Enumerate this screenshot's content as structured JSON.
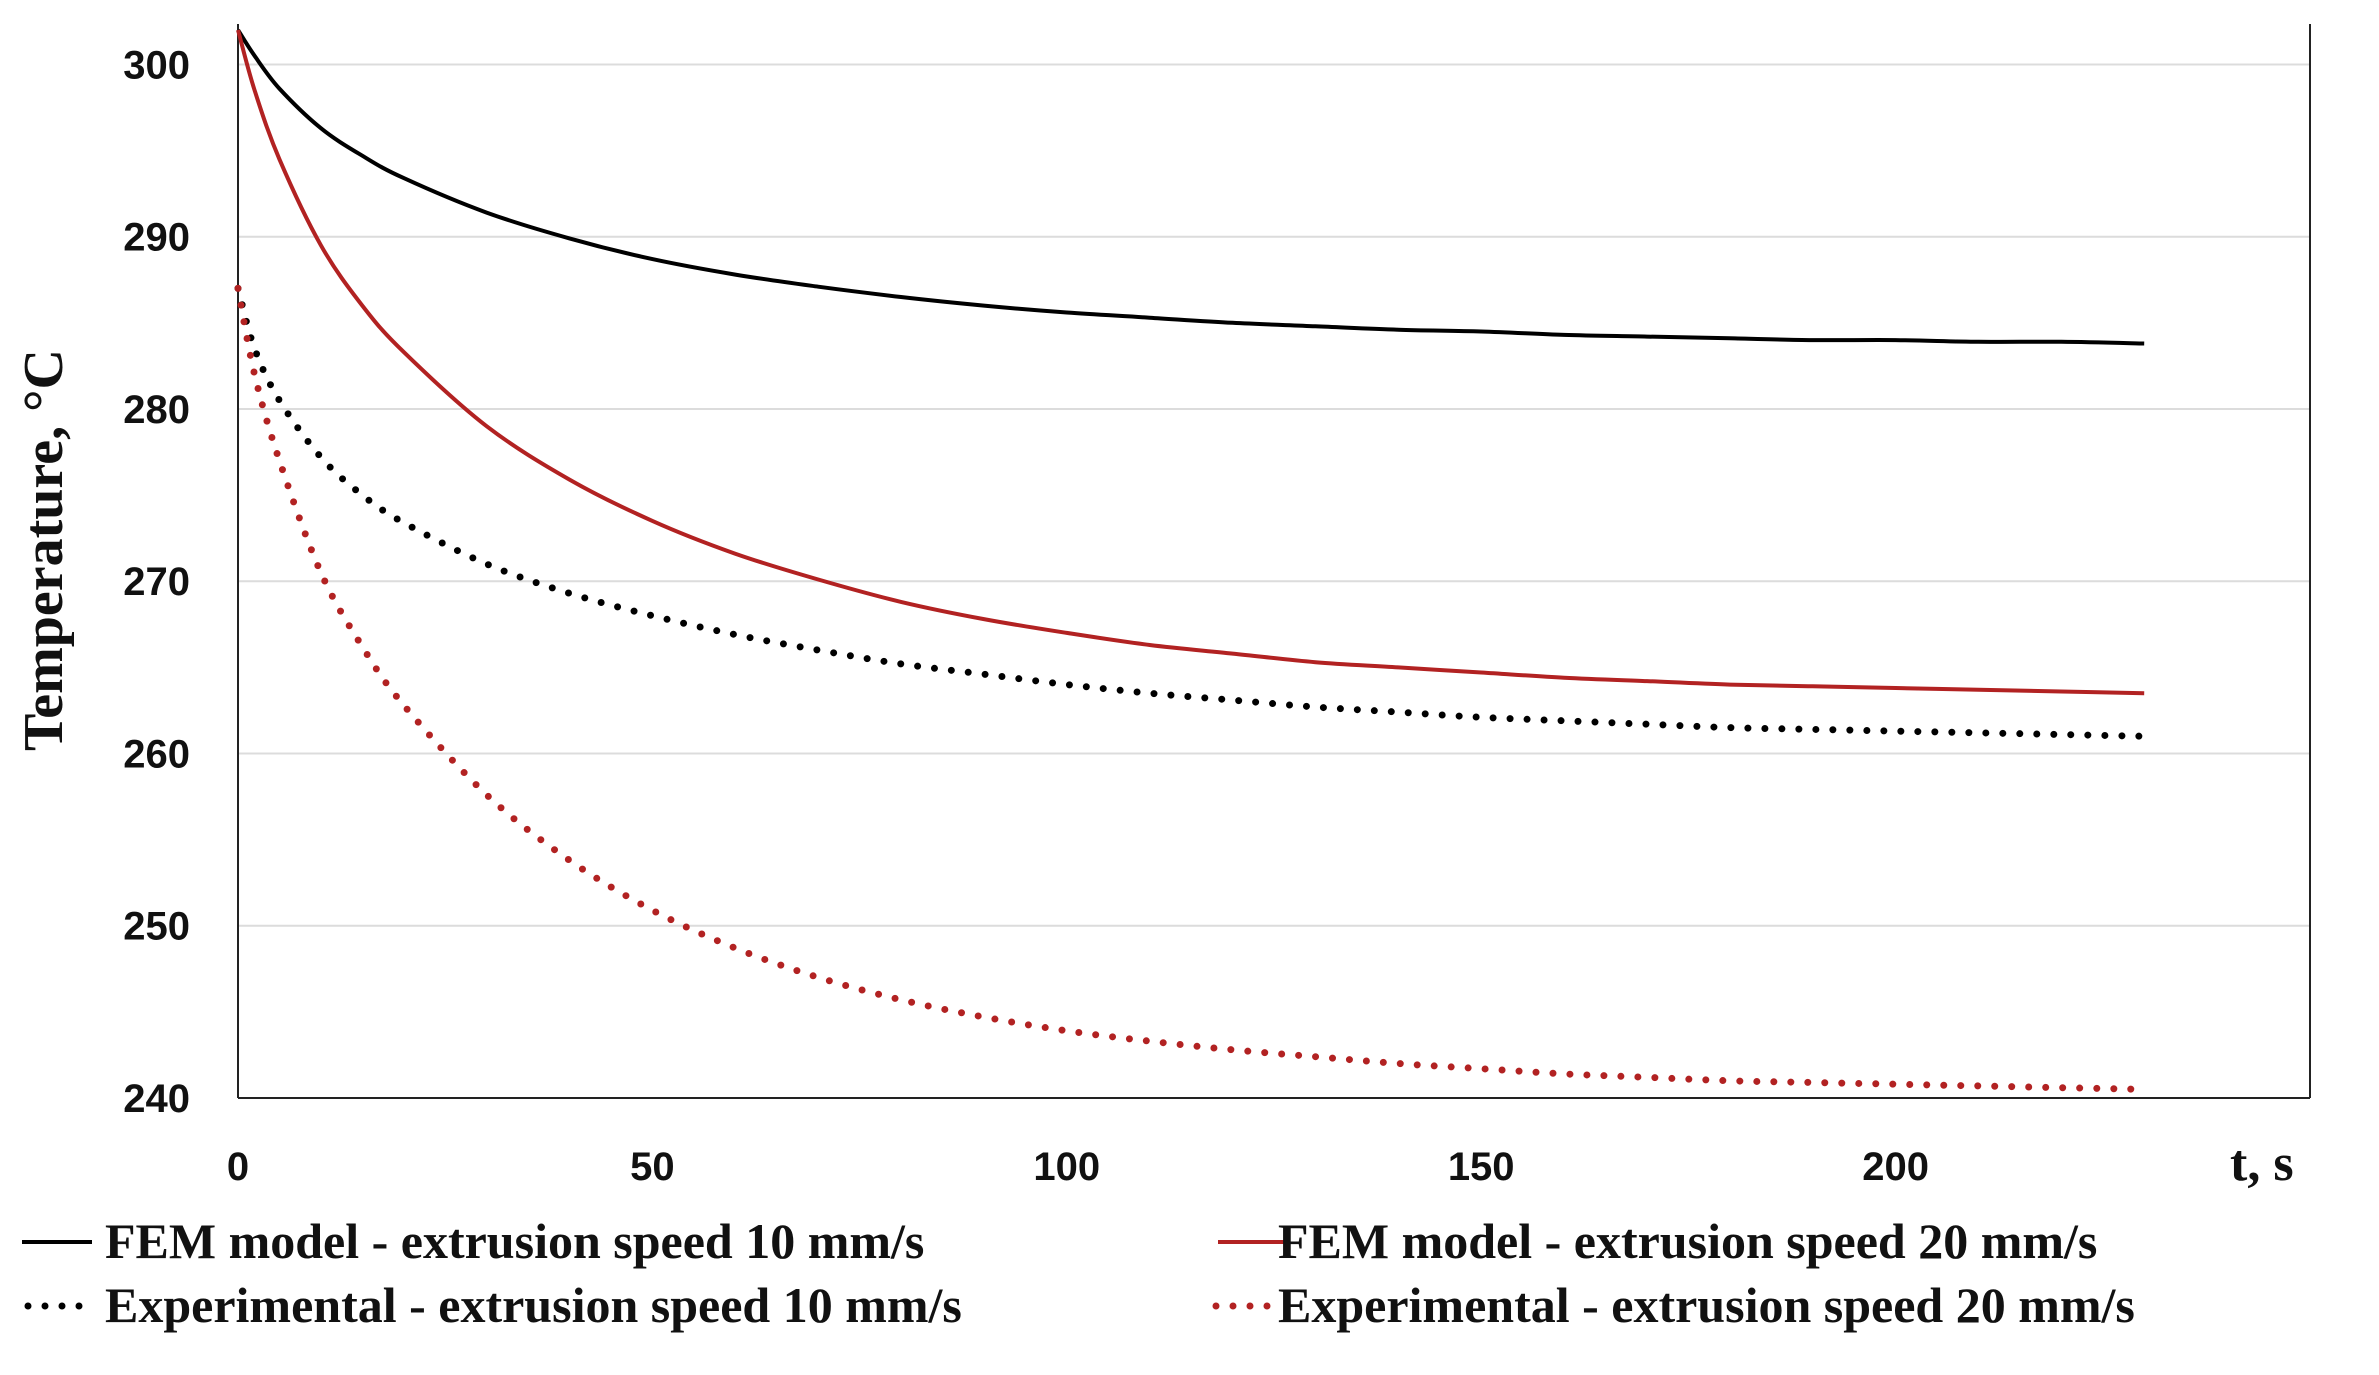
{
  "chart_data": {
    "type": "line",
    "title": "",
    "xlabel": "t, s",
    "ylabel": "Temperature, °C",
    "xlim": [
      0,
      250
    ],
    "ylim": [
      240,
      302
    ],
    "xticks": [
      0,
      50,
      100,
      150,
      200
    ],
    "yticks": [
      240,
      250,
      260,
      270,
      280,
      290,
      300
    ],
    "grid": "horizontal",
    "legend_position": "bottom",
    "series": [
      {
        "name": "FEM model - extrusion speed 10 mm/s",
        "color": "#000000",
        "style": "solid",
        "x": [
          0,
          2,
          5,
          10,
          15,
          20,
          30,
          40,
          50,
          60,
          70,
          80,
          90,
          100,
          110,
          120,
          130,
          140,
          150,
          160,
          170,
          180,
          190,
          200,
          210,
          220,
          230
        ],
        "y": [
          302,
          300.5,
          298.6,
          296.3,
          294.7,
          293.4,
          291.4,
          289.9,
          288.7,
          287.8,
          287.1,
          286.5,
          286.0,
          285.6,
          285.3,
          285.0,
          284.8,
          284.6,
          284.5,
          284.3,
          284.2,
          284.1,
          284.0,
          284.0,
          283.9,
          283.9,
          283.8
        ]
      },
      {
        "name": "FEM model - extrusion speed 20 mm/s",
        "color": "#b22222",
        "style": "solid",
        "x": [
          0,
          2,
          5,
          10,
          15,
          20,
          30,
          40,
          50,
          60,
          70,
          80,
          90,
          100,
          110,
          120,
          130,
          140,
          150,
          160,
          170,
          180,
          190,
          200,
          210,
          220,
          230
        ],
        "y": [
          302,
          298.5,
          294.5,
          289.5,
          286.0,
          283.3,
          279.0,
          275.9,
          273.5,
          271.6,
          270.1,
          268.8,
          267.8,
          267.0,
          266.3,
          265.8,
          265.3,
          265.0,
          264.7,
          264.4,
          264.2,
          264.0,
          263.9,
          263.8,
          263.7,
          263.6,
          263.5
        ]
      },
      {
        "name": "Experimental - extrusion speed 10 mm/s",
        "color": "#000000",
        "style": "dotted",
        "x": [
          0,
          2,
          5,
          10,
          15,
          20,
          30,
          40,
          50,
          60,
          70,
          80,
          90,
          100,
          110,
          120,
          130,
          140,
          150,
          160,
          170,
          180,
          190,
          200,
          210,
          220,
          230
        ],
        "y": [
          287,
          283.5,
          280.5,
          277.2,
          275.0,
          273.4,
          271.0,
          269.3,
          268.0,
          266.9,
          266.0,
          265.2,
          264.6,
          264.0,
          263.5,
          263.1,
          262.7,
          262.4,
          262.1,
          261.9,
          261.7,
          261.5,
          261.4,
          261.3,
          261.2,
          261.1,
          261.0
        ]
      },
      {
        "name": "Experimental - extrusion speed 20 mm/s",
        "color": "#b22222",
        "style": "dotted",
        "x": [
          0,
          2,
          5,
          10,
          15,
          20,
          30,
          40,
          50,
          60,
          70,
          80,
          90,
          100,
          110,
          120,
          130,
          140,
          150,
          160,
          170,
          180,
          190,
          200,
          210,
          220,
          230
        ],
        "y": [
          287,
          282.0,
          277.0,
          270.5,
          266.2,
          262.8,
          257.6,
          253.8,
          250.9,
          248.7,
          247.0,
          245.7,
          244.7,
          243.9,
          243.3,
          242.8,
          242.4,
          242.0,
          241.7,
          241.4,
          241.2,
          241.0,
          240.9,
          240.8,
          240.7,
          240.6,
          240.5
        ]
      }
    ]
  }
}
